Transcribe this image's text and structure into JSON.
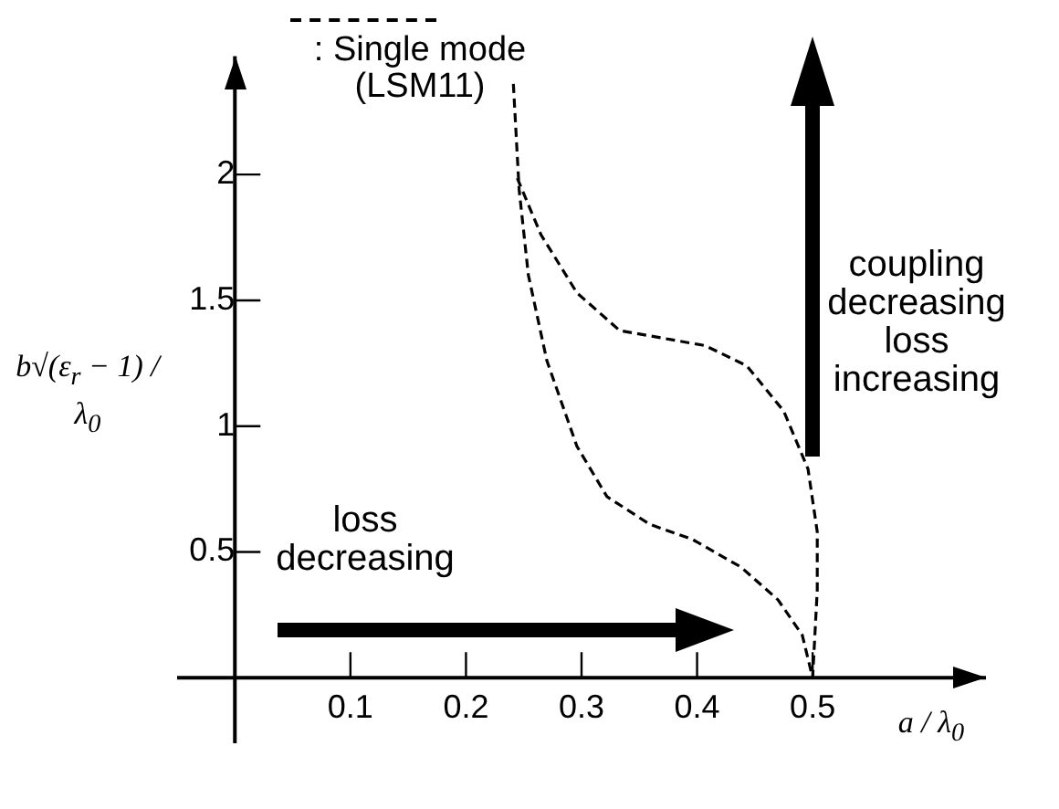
{
  "chart_data": {
    "type": "line",
    "xlabel": "a / λ$_{0}$",
    "ylabel": "b√(ε$_{r}$ − 1) / λ$_{0}$",
    "xlim": [
      -0.05,
      0.65
    ],
    "ylim": [
      -0.26,
      2.47
    ],
    "xticks": [
      0.1,
      0.2,
      0.3,
      0.4,
      0.5
    ],
    "yticks": [
      0.5,
      1,
      1.5,
      2
    ],
    "grid": false,
    "legend": "top left",
    "marker": "none",
    "line_style": "dashed",
    "series": [
      {
        "name": ": Single mode (LSM11)",
        "color": "#000000",
        "x": [
          0.241,
          0.246,
          0.254,
          0.27,
          0.296,
          0.322,
          0.359,
          0.396,
          0.438,
          0.47,
          0.491,
          0.5,
          0.504,
          0.504,
          0.496,
          0.475,
          0.443,
          0.407,
          0.37,
          0.333,
          0.296,
          0.265,
          0.244
        ],
        "values": [
          2.36,
          1.94,
          1.6,
          1.26,
          0.92,
          0.72,
          0.61,
          0.55,
          0.44,
          0.31,
          0.17,
          0,
          0.35,
          0.58,
          0.83,
          1.06,
          1.24,
          1.32,
          1.35,
          1.38,
          1.53,
          1.76,
          1.99
        ]
      }
    ],
    "annotations": [
      "loss\ndecreasing",
      "coupling\ndecreasing\nloss\nincreasing"
    ]
  }
}
